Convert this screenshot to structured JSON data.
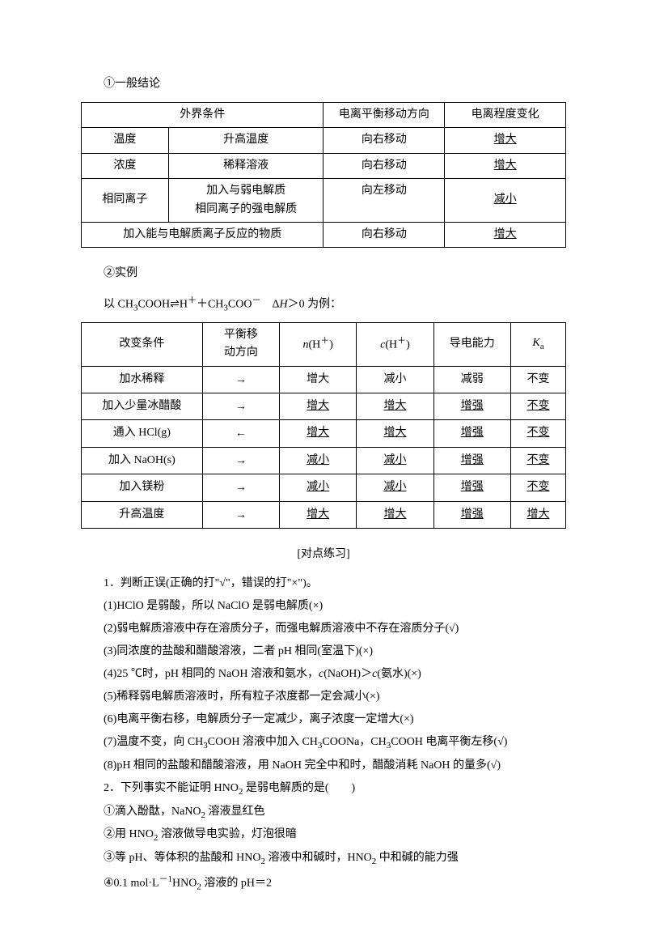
{
  "section1_label": "①一般结论",
  "table1": {
    "headers": [
      "外界条件",
      "电离平衡移动方向",
      "电离程度变化"
    ],
    "rows": [
      {
        "c1a": "温度",
        "c1b": "升高温度",
        "c2": "向右移动",
        "c3": "增大"
      },
      {
        "c1a": "浓度",
        "c1b": "稀释溶液",
        "c2": "向右移动",
        "c3": "增大"
      },
      {
        "c1a": "相同离子",
        "c1b_l1": "加入与弱电解质",
        "c1b_l2": "相同离子的强电解质",
        "c2": "向左移动",
        "c3": "减小"
      },
      {
        "c1_merged": "加入能与电解质离子反应的物质",
        "c2": "向右移动",
        "c3": "增大"
      }
    ]
  },
  "section2_label": "②实例",
  "example_text_pre": "以 CH",
  "example_text_mid1": "COOH⇌H",
  "example_text_mid2": "＋CH",
  "example_text_mid3": "COO",
  "example_text_dh": "　Δ",
  "example_text_end": "＞0 为例：",
  "table2": {
    "headers": {
      "h1": "改变条件",
      "h2_l1": "平衡移",
      "h2_l2": "动方向",
      "h3_pre": "n",
      "h3_mid": "(H",
      "h3_post": ")",
      "h4_pre": "c",
      "h4_mid": "(H",
      "h4_post": ")",
      "h5": "导电能力",
      "h6_pre": "K",
      "h6_sub": "a"
    },
    "rows": [
      {
        "c1": "加水稀释",
        "c2": "→",
        "c3": "增大",
        "c4": "减小",
        "c5": "减弱",
        "c6": "不变",
        "c3u": false,
        "c4u": false,
        "c5u": false,
        "c6u": false
      },
      {
        "c1": "加入少量冰醋酸",
        "c2": "→",
        "c3": "增大",
        "c4": "增大",
        "c5": "增强",
        "c6": "不变",
        "c3u": true,
        "c4u": true,
        "c5u": true,
        "c6u": true
      },
      {
        "c1": "通入 HCl(g)",
        "c2": "←",
        "c3": "增大",
        "c4": "增大",
        "c5": "增强",
        "c6": "不变",
        "c3u": true,
        "c4u": true,
        "c5u": true,
        "c6u": true
      },
      {
        "c1": "加入 NaOH(s)",
        "c2": "→",
        "c3": "减小",
        "c4": "减小",
        "c5": "增强",
        "c6": "不变",
        "c3u": true,
        "c4u": true,
        "c5u": true,
        "c6u": true
      },
      {
        "c1": "加入镁粉",
        "c2": "→",
        "c3": "减小",
        "c4": "减小",
        "c5": "增强",
        "c6": "不变",
        "c3u": true,
        "c4u": true,
        "c5u": true,
        "c6u": true
      },
      {
        "c1": "升高温度",
        "c2": "→",
        "c3": "增大",
        "c4": "增大",
        "c5": "增强",
        "c6": "增大",
        "c3u": true,
        "c4u": true,
        "c5u": true,
        "c6u": true
      }
    ]
  },
  "practice_title": "[对点练习]",
  "practice": {
    "q1": "1．判断正误(正确的打\"√\"，错误的打\"×\")。",
    "q1_1": "(1)HClO 是弱酸，所以 NaClO 是弱电解质(×)",
    "q1_2": "(2)弱电解质溶液中存在溶质分子，而强电解质溶液中不存在溶质分子(√)",
    "q1_3": "(3)同浓度的盐酸和醋酸溶液，二者 pH 相同(室温下)(×)",
    "q1_4_pre": "(4)25 ℃时，pH 相同的 NaOH 溶液和氨水，",
    "q1_4_c1": "c",
    "q1_4_mid1": "(NaOH)＞",
    "q1_4_c2": "c",
    "q1_4_end": "(氨水)(×)",
    "q1_5": "(5)稀释弱电解质溶液时，所有粒子浓度都一定会减小(×)",
    "q1_6": "(6)电离平衡右移，电解质分子一定减少，离子浓度一定增大(×)",
    "q1_7_pre": "(7)温度不变，向 CH",
    "q1_7_mid1": "COOH 溶液中加入 CH",
    "q1_7_mid2": "COONa，CH",
    "q1_7_end": "COOH 电离平衡左移(√)",
    "q1_8": "(8)pH 相同的盐酸和醋酸溶液，用 NaOH 完全中和时，醋酸消耗 NaOH 的量多(√)",
    "q2_pre": "2．下列事实不能证明 HNO",
    "q2_end": " 是弱电解质的是(　　)",
    "q2_1_pre": "①滴入酚酞，NaNO",
    "q2_1_end": " 溶液显红色",
    "q2_2_pre": "②用 HNO",
    "q2_2_end": " 溶液做导电实验，灯泡很暗",
    "q2_3_pre": "③等 pH、等体积的盐酸和 HNO",
    "q2_3_mid": " 溶液中和碱时，HNO",
    "q2_3_end": " 中和碱的能力强",
    "q2_4_pre": "④0.1 mol·L",
    "q2_4_mid": "HNO",
    "q2_4_end": " 溶液的 pH＝2"
  }
}
